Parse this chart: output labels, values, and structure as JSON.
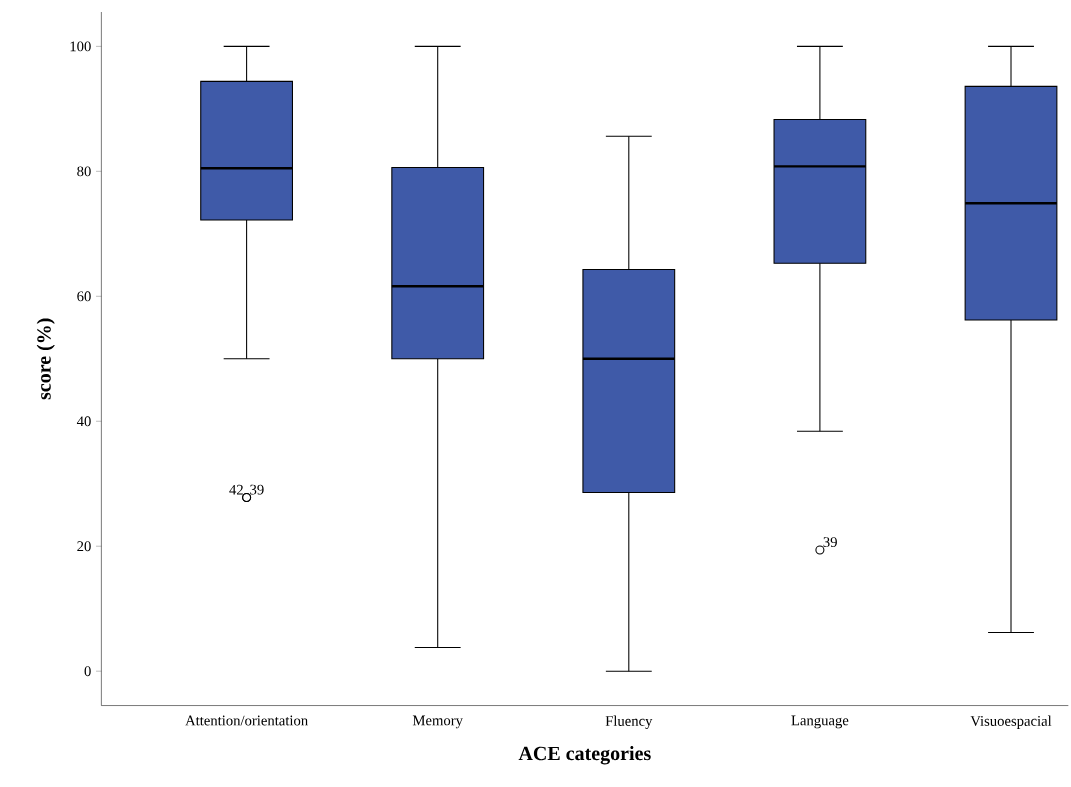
{
  "chart_data": {
    "type": "box",
    "xlabel": "ACE categories",
    "ylabel": "score (%)",
    "categories": [
      "Attention/orientation",
      "Memory",
      "Fluency",
      "Language",
      "Visuoespacial"
    ],
    "color": "#3f5aa8",
    "boxes": [
      {
        "low": 50,
        "q1": 72.2,
        "median": 80.5,
        "q3": 94.4,
        "high": 100,
        "outliers": [
          27.8,
          27.8
        ]
      },
      {
        "low": 3.8,
        "q1": 50,
        "median": 61.6,
        "q3": 80.6,
        "high": 100
      },
      {
        "low": 0,
        "q1": 28.6,
        "median": 50,
        "q3": 64.3,
        "high": 85.6
      },
      {
        "low": 38.4,
        "q1": 65.3,
        "median": 80.8,
        "q3": 88.3,
        "high": 100,
        "outliers": [
          19.4
        ]
      },
      {
        "low": 6.2,
        "q1": 56.2,
        "median": 74.9,
        "q3": 93.6,
        "high": 100
      }
    ],
    "annotations": [
      "42",
      "39",
      "39"
    ],
    "ylim": [
      -5.5,
      105.5
    ],
    "yticks": [
      0,
      20,
      40,
      60,
      80,
      100
    ],
    "grid": false
  }
}
